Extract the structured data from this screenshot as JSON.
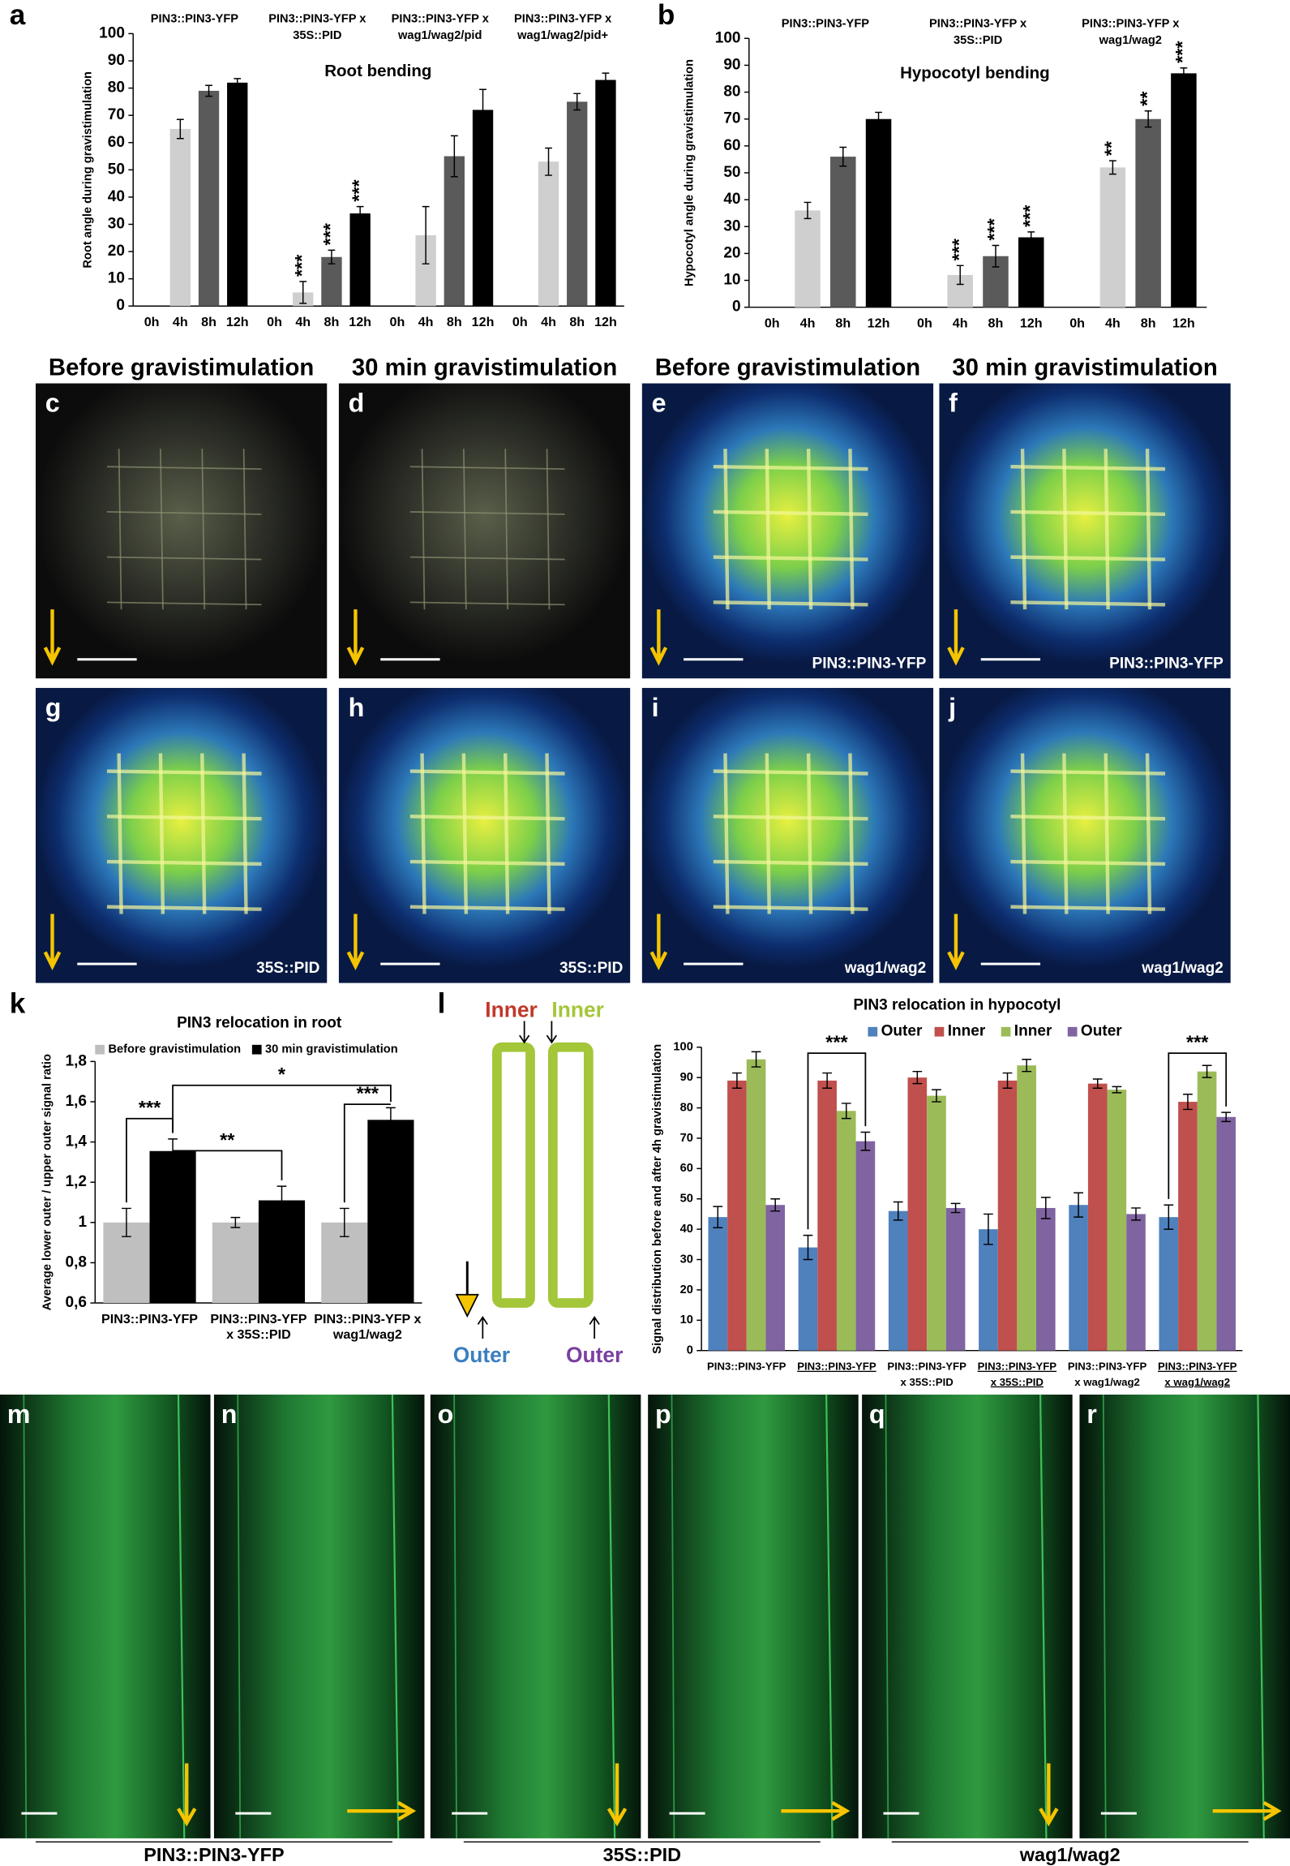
{
  "chart_data": [
    {
      "type": "bar",
      "panel": "a",
      "title": "Root bending",
      "ylabel": "Root angle during gravistimulation",
      "categories": [
        "0h",
        "4h",
        "8h",
        "12h"
      ],
      "colors": [
        "#cfcfcf",
        "#cfcfcf",
        "#5a5a5a",
        "#000000"
      ],
      "ylim": [
        0,
        100
      ],
      "yticks": [
        0,
        10,
        20,
        30,
        40,
        50,
        60,
        70,
        80,
        90,
        100
      ],
      "groups": [
        {
          "title": [
            "PIN3::PIN3-YFP"
          ],
          "values": [
            0,
            65,
            79,
            82
          ],
          "errors": [
            null,
            3.5,
            2,
            1.5
          ],
          "annotations": [
            null,
            null,
            null,
            null
          ]
        },
        {
          "title": [
            "PIN3::PIN3-YFP x",
            "35S::PID"
          ],
          "values": [
            0,
            5,
            18,
            34
          ],
          "errors": [
            null,
            4,
            2.5,
            2.5
          ],
          "annotations": [
            null,
            "***",
            "***",
            "***"
          ]
        },
        {
          "title": [
            "PIN3::PIN3-YFP x",
            "wag1/wag2/pid"
          ],
          "values": [
            0,
            26,
            55,
            72
          ],
          "errors": [
            null,
            10.5,
            7.5,
            7.5
          ],
          "annotations": [
            null,
            null,
            null,
            null
          ]
        },
        {
          "title": [
            "PIN3::PIN3-YFP x",
            "wag1/wag2/pid+"
          ],
          "values": [
            0,
            53,
            75,
            83
          ],
          "errors": [
            null,
            5,
            3,
            2.5
          ],
          "annotations": [
            null,
            null,
            null,
            null
          ]
        }
      ]
    },
    {
      "type": "bar",
      "panel": "b",
      "title": "Hypocotyl bending",
      "ylabel": "Hypocotyl angle during gravistimulation",
      "categories": [
        "0h",
        "4h",
        "8h",
        "12h"
      ],
      "colors": [
        "#cfcfcf",
        "#cfcfcf",
        "#5a5a5a",
        "#000000"
      ],
      "ylim": [
        0,
        100
      ],
      "yticks": [
        0,
        10,
        20,
        30,
        40,
        50,
        60,
        70,
        80,
        90,
        100
      ],
      "groups": [
        {
          "title": [
            "PIN3::PIN3-YFP"
          ],
          "values": [
            0,
            36,
            56,
            70
          ],
          "errors": [
            null,
            3,
            3.5,
            2.5
          ],
          "annotations": [
            null,
            null,
            null,
            null
          ]
        },
        {
          "title": [
            "PIN3::PIN3-YFP x",
            "35S::PID"
          ],
          "values": [
            0,
            12,
            19,
            26
          ],
          "errors": [
            null,
            3.5,
            4,
            2
          ],
          "annotations": [
            null,
            "***",
            "***",
            "***"
          ]
        },
        {
          "title": [
            "PIN3::PIN3-YFP x",
            "wag1/wag2"
          ],
          "values": [
            0,
            52,
            70,
            87
          ],
          "errors": [
            null,
            2.5,
            3,
            2
          ],
          "annotations": [
            null,
            "**",
            "**",
            "***"
          ]
        }
      ]
    },
    {
      "type": "bar",
      "panel": "k",
      "title": "PIN3 relocation in root",
      "ylabel": "Average lower outer / upper outer signal ratio",
      "categories": [
        [
          "PIN3::PIN3-YFP"
        ],
        [
          "PIN3::PIN3-YFP",
          "x 35S::PID"
        ],
        [
          "PIN3::PIN3-YFP x",
          "wag1/wag2"
        ]
      ],
      "series": [
        {
          "name": "Before gravistimulation",
          "color": "#bfbfbf",
          "values": [
            1,
            1,
            1
          ],
          "errors": [
            0.07,
            0.025,
            0.07
          ]
        },
        {
          "name": "30 min gravistimulation",
          "color": "#000000",
          "values": [
            1.355,
            1.11,
            1.51
          ],
          "errors": [
            0.06,
            0.07,
            0.06
          ]
        }
      ],
      "ylim": [
        0.6,
        1.8
      ],
      "yticks": [
        {
          "value": 0.6,
          "label": "0,6"
        },
        {
          "value": 0.8,
          "label": "0,8"
        },
        1,
        {
          "value": 1.2,
          "label": "1,2"
        },
        {
          "value": 1.4,
          "label": "1,4"
        },
        {
          "value": 1.6,
          "label": "1,6"
        },
        {
          "value": 1.8,
          "label": "1,8"
        }
      ],
      "annotations": [
        "***",
        "**",
        "***",
        "*"
      ]
    },
    {
      "type": "bar",
      "panel": "l",
      "title": "PIN3 relocation in hypocotyl",
      "ylabel": "Signal distribution before and after 4h gravistimulation",
      "categories": [
        [
          "PIN3::PIN3-YFP"
        ],
        [
          "PIN3::PIN3-YFP"
        ],
        [
          "PIN3::PIN3-YFP",
          "x 35S::PID"
        ],
        [
          "PIN3::PIN3-YFP",
          "x 35S::PID"
        ],
        [
          "PIN3::PIN3-YFP",
          "x wag1/wag2"
        ],
        [
          "PIN3::PIN3-YFP",
          "x wag1/wag2"
        ]
      ],
      "underlined": [
        false,
        true,
        false,
        true,
        false,
        true
      ],
      "series": [
        {
          "name": "Outer",
          "color": "#4f81bd",
          "values": [
            44,
            34,
            46,
            40,
            48,
            44
          ],
          "errors": [
            3.5,
            4,
            3,
            5,
            4,
            4
          ]
        },
        {
          "name": "Inner",
          "color": "#c0504d",
          "values": [
            89,
            89,
            90,
            89,
            88,
            82
          ],
          "errors": [
            2.5,
            2.5,
            2,
            2.5,
            1.5,
            2.5
          ]
        },
        {
          "name": "Inner",
          "color": "#9bbb59",
          "values": [
            96,
            79,
            84,
            94,
            86,
            92
          ],
          "errors": [
            2.5,
            2.5,
            2,
            2,
            1,
            2
          ]
        },
        {
          "name": "Outer",
          "color": "#8064a2",
          "values": [
            48,
            69,
            47,
            47,
            45,
            77
          ],
          "errors": [
            2,
            3,
            1.5,
            3.5,
            2,
            1.5
          ]
        }
      ],
      "ylim": [
        0,
        100
      ],
      "yticks": [
        0,
        10,
        20,
        30,
        40,
        50,
        60,
        70,
        80,
        90,
        100
      ],
      "annotations": [
        "***",
        "***"
      ]
    }
  ],
  "panels": {
    "micro_top": {
      "titles": [
        "Before gravistimulation",
        "30 min gravistimulation",
        "Before gravistimulation",
        "30 min gravistimulation"
      ],
      "panels": [
        {
          "letter": "c"
        },
        {
          "letter": "d"
        },
        {
          "letter": "e",
          "label": "PIN3::PIN3-YFP"
        },
        {
          "letter": "f",
          "label": "PIN3::PIN3-YFP"
        },
        {
          "letter": "g",
          "label": "35S::PID"
        },
        {
          "letter": "h",
          "label": "35S::PID"
        },
        {
          "letter": "i",
          "label": "wag1/wag2"
        },
        {
          "letter": "j",
          "label": "wag1/wag2"
        }
      ]
    },
    "diagram": {
      "labels": [
        {
          "text": "Inner",
          "color": "#c0392b"
        },
        {
          "text": "Inner",
          "color": "#a4c639"
        },
        {
          "text": "Outer",
          "color": "#3a7fc1"
        },
        {
          "text": "Outer",
          "color": "#7b3fa0"
        }
      ]
    },
    "micro_bottom": {
      "letters": [
        "m",
        "n",
        "o",
        "p",
        "q",
        "r"
      ],
      "labels": [
        "PIN3::PIN3-YFP",
        "35S::PID",
        "wag1/wag2"
      ]
    }
  }
}
